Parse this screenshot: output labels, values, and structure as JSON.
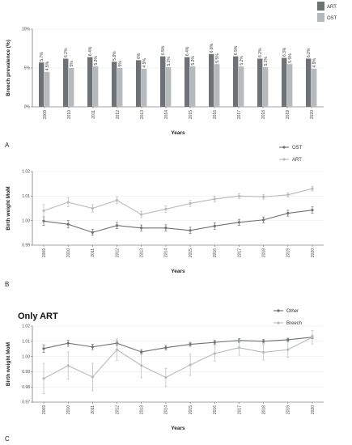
{
  "chart_data": [
    {
      "panel": "A",
      "type": "bar",
      "xlabel": "Years",
      "ylabel": "Breech prevalence (%)",
      "ylim": [
        0,
        10
      ],
      "yticks": [
        "0%",
        "5%",
        "10%"
      ],
      "grid": true,
      "legend_position": "top-right",
      "categories": [
        "2009",
        "2010",
        "2011",
        "2012",
        "2013",
        "2014",
        "2015",
        "2016",
        "2017",
        "2018",
        "2019",
        "2020"
      ],
      "series": [
        {
          "name": "ART",
          "color": "#6e7176",
          "values": [
            5.7,
            6.2,
            6.4,
            5.8,
            6.0,
            6.5,
            6.4,
            6.8,
            6.5,
            6.2,
            6.3,
            6.2
          ],
          "labels": [
            "5.7%",
            "6.2%",
            "6.4%",
            "5.8%",
            "6%",
            "6.5%",
            "6.4%",
            "6.8%",
            "6.5%",
            "6.2%",
            "6.3%",
            "6.2%"
          ]
        },
        {
          "name": "OST",
          "color": "#b7babd",
          "values": [
            4.5,
            5.0,
            5.2,
            5.0,
            4.9,
            5.1,
            5.2,
            5.5,
            5.2,
            5.1,
            5.5,
            4.9
          ],
          "labels": [
            "4.5%",
            "5%",
            "5.2%",
            "5%",
            "4.9%",
            "5.1%",
            "5.2%",
            "5.5%",
            "5.2%",
            "5.1%",
            "5.5%",
            "4.9%"
          ]
        }
      ]
    },
    {
      "panel": "B",
      "type": "line",
      "xlabel": "Years",
      "ylabel": "Birth weight MoM",
      "ylim": [
        0.99,
        1.02
      ],
      "yticks": [
        "0.99",
        "1.00",
        "1.01",
        "1.02"
      ],
      "grid": true,
      "legend_position": "top-right",
      "x": [
        "2009",
        "2010",
        "2011",
        "2012",
        "2013",
        "2014",
        "2015",
        "2016",
        "2017",
        "2018",
        "2019",
        "2020"
      ],
      "series": [
        {
          "name": "OST",
          "color": "#6e7176",
          "values": [
            0.9998,
            0.9985,
            0.9952,
            0.998,
            0.997,
            0.997,
            0.996,
            0.9978,
            0.9993,
            1.0003,
            1.003,
            1.0043
          ],
          "err": [
            0.0018,
            0.0015,
            0.0012,
            0.0013,
            0.0012,
            0.0013,
            0.0013,
            0.0013,
            0.0012,
            0.0012,
            0.0012,
            0.0013
          ]
        },
        {
          "name": "ART",
          "color": "#b7babd",
          "values": [
            1.004,
            1.0075,
            1.005,
            1.0083,
            1.0025,
            1.0047,
            1.007,
            1.0088,
            1.01,
            1.0097,
            1.0105,
            1.013
          ],
          "err": [
            0.0025,
            0.0018,
            0.0015,
            0.0013,
            0.0013,
            0.0013,
            0.0012,
            0.0012,
            0.001,
            0.001,
            0.0009,
            0.0009
          ]
        }
      ]
    },
    {
      "panel": "C",
      "type": "line",
      "title": "Only ART",
      "xlabel": "Years",
      "ylabel": "Birth weight MoM",
      "ylim": [
        0.97,
        1.02
      ],
      "yticks": [
        "0.97",
        "0.98",
        "0.99",
        "1.00",
        "1.01",
        "1.02"
      ],
      "grid": true,
      "legend_position": "top-right",
      "x": [
        "2009",
        "2010",
        "2011",
        "2012",
        "2013",
        "2014",
        "2015",
        "2016",
        "2017",
        "2018",
        "2019",
        "2020"
      ],
      "series": [
        {
          "name": "Other",
          "color": "#6e7176",
          "values": [
            1.0052,
            1.0087,
            1.0063,
            1.0087,
            1.003,
            1.0058,
            1.008,
            1.0093,
            1.0105,
            1.01,
            1.011,
            1.0127
          ],
          "err": [
            0.0025,
            0.002,
            0.0018,
            0.0015,
            0.0015,
            0.0015,
            0.0013,
            0.0013,
            0.0012,
            0.0012,
            0.001,
            0.001
          ]
        },
        {
          "name": "Breech",
          "color": "#b7babd",
          "values": [
            0.9855,
            0.994,
            0.9865,
            1.0045,
            0.994,
            0.9862,
            0.9945,
            1.002,
            1.0058,
            1.0027,
            1.0045,
            1.0127
          ],
          "err": [
            0.01,
            0.009,
            0.009,
            0.007,
            0.008,
            0.006,
            0.007,
            0.005,
            0.005,
            0.005,
            0.005,
            0.0045
          ]
        }
      ]
    }
  ],
  "panel_letters": {
    "a": "A",
    "b": "B",
    "c": "C"
  }
}
